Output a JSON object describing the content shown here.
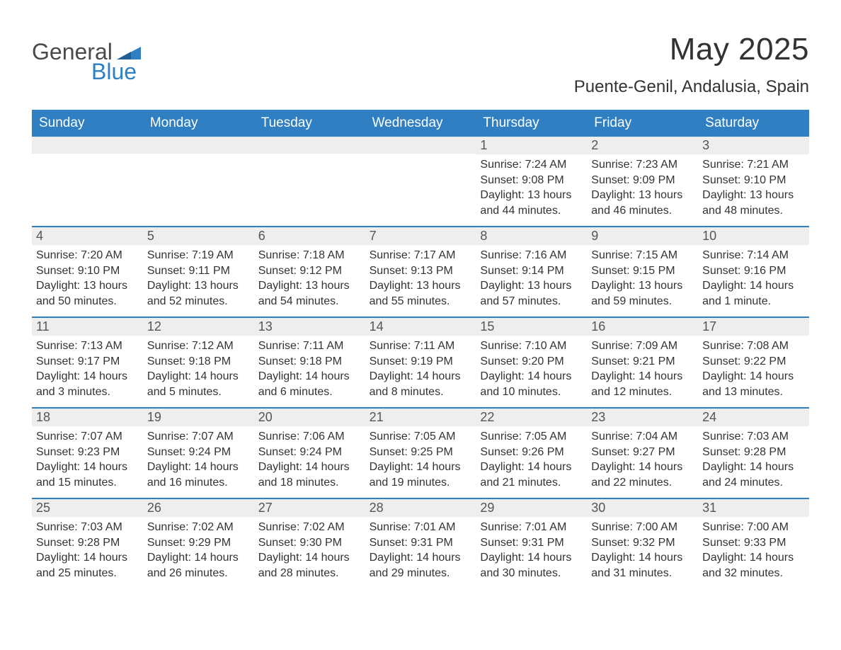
{
  "logo": {
    "text1": "General",
    "text2": "Blue",
    "accent_color": "#2f7fc2",
    "text_color": "#4a4a4a"
  },
  "header": {
    "title": "May 2025",
    "location": "Puente-Genil, Andalusia, Spain"
  },
  "colors": {
    "header_bg": "#2f7fc2",
    "header_text": "#ffffff",
    "day_bar_bg": "#eeeeee",
    "border": "#2f7fc2",
    "body_text": "#333333"
  },
  "weekdays": [
    "Sunday",
    "Monday",
    "Tuesday",
    "Wednesday",
    "Thursday",
    "Friday",
    "Saturday"
  ],
  "leading_blanks": 4,
  "days": [
    {
      "n": "1",
      "sunrise": "Sunrise: 7:24 AM",
      "sunset": "Sunset: 9:08 PM",
      "daylight": "Daylight: 13 hours and 44 minutes."
    },
    {
      "n": "2",
      "sunrise": "Sunrise: 7:23 AM",
      "sunset": "Sunset: 9:09 PM",
      "daylight": "Daylight: 13 hours and 46 minutes."
    },
    {
      "n": "3",
      "sunrise": "Sunrise: 7:21 AM",
      "sunset": "Sunset: 9:10 PM",
      "daylight": "Daylight: 13 hours and 48 minutes."
    },
    {
      "n": "4",
      "sunrise": "Sunrise: 7:20 AM",
      "sunset": "Sunset: 9:10 PM",
      "daylight": "Daylight: 13 hours and 50 minutes."
    },
    {
      "n": "5",
      "sunrise": "Sunrise: 7:19 AM",
      "sunset": "Sunset: 9:11 PM",
      "daylight": "Daylight: 13 hours and 52 minutes."
    },
    {
      "n": "6",
      "sunrise": "Sunrise: 7:18 AM",
      "sunset": "Sunset: 9:12 PM",
      "daylight": "Daylight: 13 hours and 54 minutes."
    },
    {
      "n": "7",
      "sunrise": "Sunrise: 7:17 AM",
      "sunset": "Sunset: 9:13 PM",
      "daylight": "Daylight: 13 hours and 55 minutes."
    },
    {
      "n": "8",
      "sunrise": "Sunrise: 7:16 AM",
      "sunset": "Sunset: 9:14 PM",
      "daylight": "Daylight: 13 hours and 57 minutes."
    },
    {
      "n": "9",
      "sunrise": "Sunrise: 7:15 AM",
      "sunset": "Sunset: 9:15 PM",
      "daylight": "Daylight: 13 hours and 59 minutes."
    },
    {
      "n": "10",
      "sunrise": "Sunrise: 7:14 AM",
      "sunset": "Sunset: 9:16 PM",
      "daylight": "Daylight: 14 hours and 1 minute."
    },
    {
      "n": "11",
      "sunrise": "Sunrise: 7:13 AM",
      "sunset": "Sunset: 9:17 PM",
      "daylight": "Daylight: 14 hours and 3 minutes."
    },
    {
      "n": "12",
      "sunrise": "Sunrise: 7:12 AM",
      "sunset": "Sunset: 9:18 PM",
      "daylight": "Daylight: 14 hours and 5 minutes."
    },
    {
      "n": "13",
      "sunrise": "Sunrise: 7:11 AM",
      "sunset": "Sunset: 9:18 PM",
      "daylight": "Daylight: 14 hours and 6 minutes."
    },
    {
      "n": "14",
      "sunrise": "Sunrise: 7:11 AM",
      "sunset": "Sunset: 9:19 PM",
      "daylight": "Daylight: 14 hours and 8 minutes."
    },
    {
      "n": "15",
      "sunrise": "Sunrise: 7:10 AM",
      "sunset": "Sunset: 9:20 PM",
      "daylight": "Daylight: 14 hours and 10 minutes."
    },
    {
      "n": "16",
      "sunrise": "Sunrise: 7:09 AM",
      "sunset": "Sunset: 9:21 PM",
      "daylight": "Daylight: 14 hours and 12 minutes."
    },
    {
      "n": "17",
      "sunrise": "Sunrise: 7:08 AM",
      "sunset": "Sunset: 9:22 PM",
      "daylight": "Daylight: 14 hours and 13 minutes."
    },
    {
      "n": "18",
      "sunrise": "Sunrise: 7:07 AM",
      "sunset": "Sunset: 9:23 PM",
      "daylight": "Daylight: 14 hours and 15 minutes."
    },
    {
      "n": "19",
      "sunrise": "Sunrise: 7:07 AM",
      "sunset": "Sunset: 9:24 PM",
      "daylight": "Daylight: 14 hours and 16 minutes."
    },
    {
      "n": "20",
      "sunrise": "Sunrise: 7:06 AM",
      "sunset": "Sunset: 9:24 PM",
      "daylight": "Daylight: 14 hours and 18 minutes."
    },
    {
      "n": "21",
      "sunrise": "Sunrise: 7:05 AM",
      "sunset": "Sunset: 9:25 PM",
      "daylight": "Daylight: 14 hours and 19 minutes."
    },
    {
      "n": "22",
      "sunrise": "Sunrise: 7:05 AM",
      "sunset": "Sunset: 9:26 PM",
      "daylight": "Daylight: 14 hours and 21 minutes."
    },
    {
      "n": "23",
      "sunrise": "Sunrise: 7:04 AM",
      "sunset": "Sunset: 9:27 PM",
      "daylight": "Daylight: 14 hours and 22 minutes."
    },
    {
      "n": "24",
      "sunrise": "Sunrise: 7:03 AM",
      "sunset": "Sunset: 9:28 PM",
      "daylight": "Daylight: 14 hours and 24 minutes."
    },
    {
      "n": "25",
      "sunrise": "Sunrise: 7:03 AM",
      "sunset": "Sunset: 9:28 PM",
      "daylight": "Daylight: 14 hours and 25 minutes."
    },
    {
      "n": "26",
      "sunrise": "Sunrise: 7:02 AM",
      "sunset": "Sunset: 9:29 PM",
      "daylight": "Daylight: 14 hours and 26 minutes."
    },
    {
      "n": "27",
      "sunrise": "Sunrise: 7:02 AM",
      "sunset": "Sunset: 9:30 PM",
      "daylight": "Daylight: 14 hours and 28 minutes."
    },
    {
      "n": "28",
      "sunrise": "Sunrise: 7:01 AM",
      "sunset": "Sunset: 9:31 PM",
      "daylight": "Daylight: 14 hours and 29 minutes."
    },
    {
      "n": "29",
      "sunrise": "Sunrise: 7:01 AM",
      "sunset": "Sunset: 9:31 PM",
      "daylight": "Daylight: 14 hours and 30 minutes."
    },
    {
      "n": "30",
      "sunrise": "Sunrise: 7:00 AM",
      "sunset": "Sunset: 9:32 PM",
      "daylight": "Daylight: 14 hours and 31 minutes."
    },
    {
      "n": "31",
      "sunrise": "Sunrise: 7:00 AM",
      "sunset": "Sunset: 9:33 PM",
      "daylight": "Daylight: 14 hours and 32 minutes."
    }
  ]
}
